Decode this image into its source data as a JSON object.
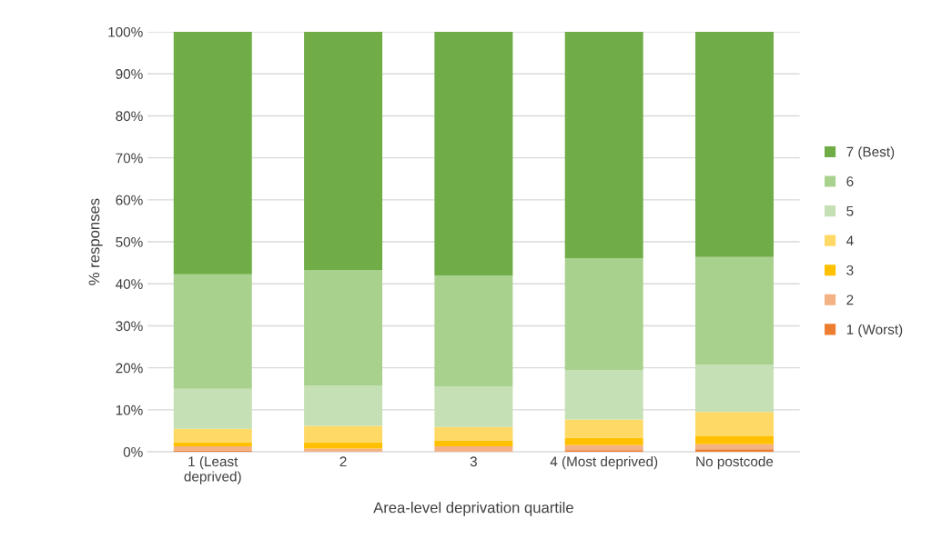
{
  "chart_data": {
    "type": "bar",
    "stacked": true,
    "xlabel": "Area-level deprivation quartile",
    "ylabel": "% responses",
    "categories": [
      "1 (Least\ndeprived)",
      "2",
      "3",
      "4 (Most deprived)",
      "No postcode"
    ],
    "series": [
      {
        "name": "1 (Worst)",
        "color": "#ed7d31",
        "values": [
          0.3,
          0,
          0,
          0.4,
          0.6
        ]
      },
      {
        "name": "2",
        "color": "#f4b183",
        "values": [
          1.0,
          0.8,
          1.3,
          1.2,
          1.2
        ]
      },
      {
        "name": "3",
        "color": "#ffc000",
        "values": [
          1.0,
          1.5,
          1.4,
          1.8,
          1.9
        ]
      },
      {
        "name": "4",
        "color": "#ffd966",
        "values": [
          3.2,
          3.9,
          3.2,
          4.3,
          5.8
        ]
      },
      {
        "name": "5",
        "color": "#c5e0b4",
        "values": [
          9.5,
          9.5,
          9.6,
          11.8,
          11.2
        ]
      },
      {
        "name": "6",
        "color": "#a9d18e",
        "values": [
          27.3,
          27.6,
          26.5,
          26.6,
          25.7
        ]
      },
      {
        "name": "7 (Best)",
        "color": "#70ad47",
        "values": [
          57.7,
          56.7,
          58.0,
          53.9,
          53.6
        ]
      }
    ],
    "ylim": [
      0,
      100
    ],
    "yticks": [
      {
        "value": 0,
        "label": "0%"
      },
      {
        "value": 10,
        "label": "10%"
      },
      {
        "value": 20,
        "label": "20%"
      },
      {
        "value": 30,
        "label": "30%"
      },
      {
        "value": 40,
        "label": "40%"
      },
      {
        "value": 50,
        "label": "50%"
      },
      {
        "value": 60,
        "label": "60%"
      },
      {
        "value": 70,
        "label": "70%"
      },
      {
        "value": 80,
        "label": "80%"
      },
      {
        "value": 90,
        "label": "90%"
      },
      {
        "value": 100,
        "label": "100%"
      }
    ],
    "grid": "y",
    "legend": "right"
  }
}
